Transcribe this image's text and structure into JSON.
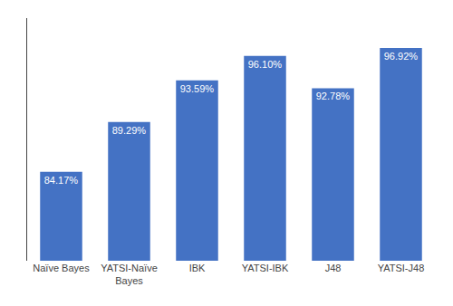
{
  "chart_data": {
    "type": "bar",
    "categories": [
      "Naïve Bayes",
      "YATSI-Naïve\nBayes",
      "IBK",
      "YATSI-IBK",
      "J48",
      "YATSI-J48"
    ],
    "values": [
      84.17,
      89.29,
      93.59,
      96.1,
      92.78,
      96.92
    ],
    "value_labels": [
      "84.17%",
      "89.29%",
      "93.59%",
      "96.10%",
      "92.78%",
      "96.92%"
    ],
    "data_labels": true,
    "color": "#4472C4",
    "ylim": [
      75,
      100
    ],
    "tick_labels": "x",
    "grid": false
  }
}
